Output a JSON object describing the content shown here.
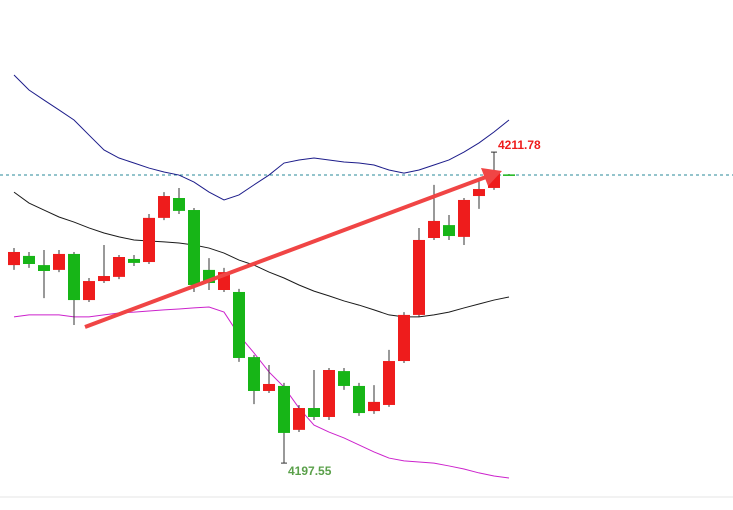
{
  "chart_data": {
    "type": "candlestick",
    "categories": [
      null,
      null,
      null,
      null,
      null,
      null,
      null,
      null,
      null,
      null,
      null,
      null,
      null,
      null,
      null,
      null,
      null,
      null,
      null,
      null,
      null,
      null,
      null,
      null,
      null,
      null,
      null,
      null,
      null,
      null,
      null,
      null,
      null,
      null
    ],
    "open": [
      4206.61,
      4207.03,
      4206.61,
      4206.39,
      4207.12,
      4205.01,
      4205.88,
      4206.07,
      4206.89,
      4206.75,
      4208.77,
      4209.68,
      4209.13,
      4206.39,
      4205.47,
      4205.38,
      4202.4,
      4200.85,
      4201.08,
      4199.07,
      4200.07,
      4199.66,
      4201.76,
      4201.08,
      4199.93,
      4200.21,
      4202.22,
      4204.33,
      4207.85,
      4208.44,
      4207.9,
      4209.77,
      4210.14,
      4210.76
    ],
    "close": [
      4207.21,
      4206.66,
      4206.34,
      4207.12,
      4205.01,
      4205.88,
      4206.11,
      4206.98,
      4206.71,
      4208.77,
      4209.77,
      4209.09,
      4205.7,
      4205.79,
      4206.29,
      4202.36,
      4200.85,
      4201.17,
      4198.93,
      4200.07,
      4199.66,
      4201.81,
      4201.08,
      4199.84,
      4200.35,
      4202.22,
      4204.33,
      4207.76,
      4208.63,
      4207.94,
      4209.59,
      4210.09,
      4210.82,
      4210.74
    ],
    "high": [
      4207.39,
      4207.21,
      4207.3,
      4207.3,
      4207.21,
      4206.02,
      4207.53,
      4207.07,
      4207.07,
      4208.95,
      4209.95,
      4210.14,
      4209.22,
      4206.93,
      4206.48,
      4205.52,
      4202.5,
      4202.04,
      4201.22,
      4200.21,
      4201.81,
      4201.9,
      4201.9,
      4201.22,
      4201.12,
      4202.73,
      4204.46,
      4208.31,
      4210.28,
      4208.9,
      4209.68,
      4210.5,
      4211.78,
      4210.78
    ],
    "low": [
      4206.39,
      4206.48,
      4205.1,
      4206.29,
      4203.87,
      4204.92,
      4205.79,
      4205.97,
      4206.57,
      4206.66,
      4208.67,
      4208.95,
      4205.38,
      4205.47,
      4205.38,
      4202.18,
      4200.25,
      4200.76,
      4197.55,
      4198.97,
      4199.52,
      4199.52,
      4200.9,
      4199.71,
      4199.8,
      4200.12,
      4202.13,
      4204.24,
      4207.76,
      4207.76,
      4207.53,
      4209.18,
      4210.05,
      4210.73
    ],
    "up_color": "#ee1c1c",
    "down_color": "#17b517",
    "overlays": [
      {
        "color": "#1c1c8a",
        "values": [
          4215.31,
          4214.62,
          4214.16,
          4213.71,
          4213.25,
          4212.56,
          4211.88,
          4211.51,
          4211.28,
          4211.05,
          4210.87,
          4210.73,
          4210.41,
          4209.95,
          4209.59,
          4209.82,
          4210.28,
          4210.73,
          4211.28,
          4211.42,
          4211.51,
          4211.42,
          4211.33,
          4211.28,
          4211.19,
          4210.96,
          4210.82,
          4210.96,
          4211.19,
          4211.42,
          4211.78,
          4212.2,
          4212.7,
          4213.25
        ]
      },
      {
        "color": "#1a1a1a",
        "values": [
          4209.95,
          4209.45,
          4209.13,
          4208.81,
          4208.58,
          4208.31,
          4208.08,
          4207.9,
          4207.76,
          4207.71,
          4207.67,
          4207.62,
          4207.53,
          4207.39,
          4207.16,
          4206.84,
          4206.61,
          4206.29,
          4206.02,
          4205.7,
          4205.42,
          4205.2,
          4204.97,
          4204.78,
          4204.56,
          4204.33,
          4204.24,
          4204.24,
          4204.33,
          4204.46,
          4204.65,
          4204.83,
          4205.01,
          4205.15
        ]
      },
      {
        "color": "#cc22cc",
        "values": [
          4204.24,
          4204.33,
          4204.33,
          4204.33,
          4204.24,
          4204.24,
          4204.33,
          4204.42,
          4204.46,
          4204.51,
          4204.56,
          4204.6,
          4204.65,
          4204.69,
          4204.46,
          4203.41,
          4202.59,
          4201.72,
          4201.03,
          4200.07,
          4199.29,
          4198.97,
          4198.7,
          4198.38,
          4198.06,
          4197.78,
          4197.65,
          4197.6,
          4197.55,
          4197.42,
          4197.28,
          4197.1,
          4196.96,
          4196.87
        ]
      }
    ],
    "price_line": 4210.73,
    "price_line_color": "#2a8a9a",
    "ylim": [
      4196.09,
      4218.74
    ]
  }
}
